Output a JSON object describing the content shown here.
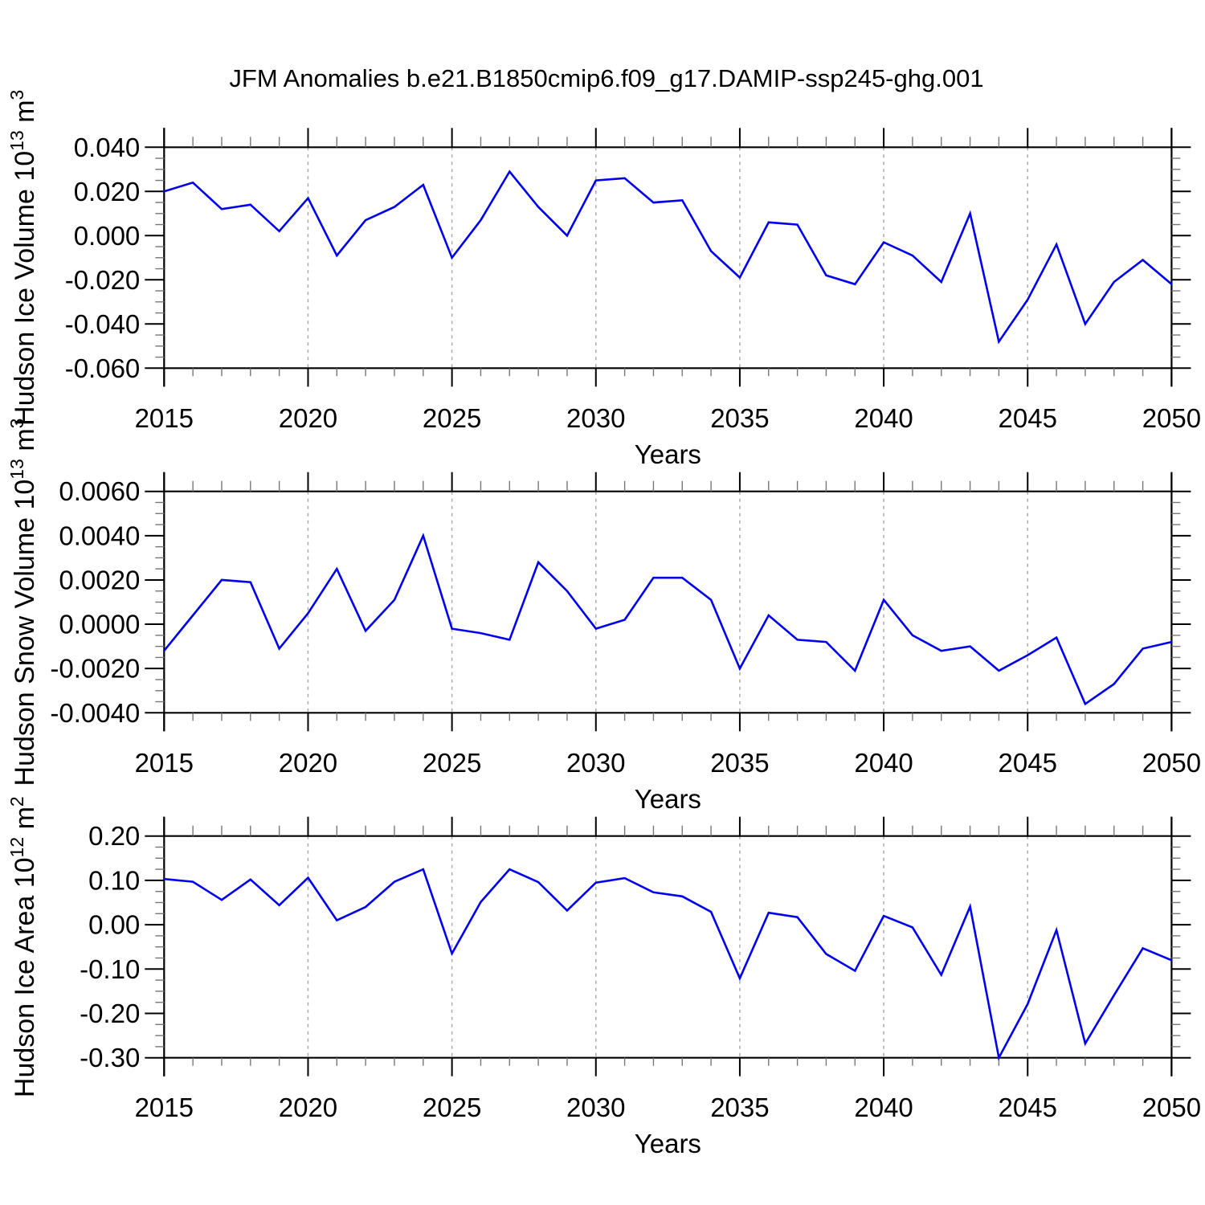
{
  "title": "JFM Anomalies b.e21.B1850cmip6.f09_g17.DAMIP-ssp245-ghg.001",
  "colors": {
    "line": "#0000ee",
    "grid": "#aaaaaa",
    "axis": "#000000",
    "minor_tick": "#777777"
  },
  "chart_data": [
    {
      "type": "line",
      "name": "hudson-ice-volume",
      "ylabel": "Hudson Ice Volume 10^13 m^3",
      "ylabel_parts": [
        [
          "t",
          "Hudson Ice Volume 10"
        ],
        [
          "sup",
          "13"
        ],
        [
          "t",
          " m"
        ],
        [
          "sup",
          "3"
        ]
      ],
      "xlabel": "Years",
      "xlim": [
        2015,
        2050
      ],
      "ylim": [
        -0.06,
        0.04
      ],
      "yminor_step": 0.005,
      "ytick_values": [
        0.04,
        0.02,
        0.0,
        -0.02,
        -0.04,
        -0.06
      ],
      "ytick_labels": [
        "0.040",
        "0.020",
        "0.000",
        "-0.020",
        "-0.040",
        "-0.060"
      ],
      "xtick_years": [
        2015,
        2020,
        2025,
        2030,
        2035,
        2040,
        2045,
        2050
      ],
      "xtick_labels": [
        "2015",
        "2020",
        "2025",
        "2030",
        "2035",
        "2040",
        "2045",
        "2050"
      ],
      "grid_years": [
        2020,
        2025,
        2030,
        2035,
        2040,
        2045
      ],
      "grid_on": true,
      "legend": "none",
      "x": [
        2015,
        2016,
        2017,
        2018,
        2019,
        2020,
        2021,
        2022,
        2023,
        2024,
        2025,
        2026,
        2027,
        2028,
        2029,
        2030,
        2031,
        2032,
        2033,
        2034,
        2035,
        2036,
        2037,
        2038,
        2039,
        2040,
        2041,
        2042,
        2043,
        2044,
        2045,
        2046,
        2047,
        2048,
        2049,
        2050
      ],
      "values": [
        0.02,
        0.024,
        0.012,
        0.014,
        0.002,
        0.017,
        -0.009,
        0.007,
        0.013,
        0.023,
        -0.01,
        0.007,
        0.029,
        0.013,
        0.0,
        0.025,
        0.026,
        0.015,
        0.016,
        -0.007,
        -0.019,
        0.006,
        0.005,
        -0.018,
        -0.022,
        -0.003,
        -0.009,
        -0.021,
        0.01,
        -0.048,
        -0.029,
        -0.004,
        -0.04,
        -0.021,
        -0.011,
        -0.022
      ]
    },
    {
      "type": "line",
      "name": "hudson-snow-volume",
      "ylabel": "Hudson Snow Volume 10^13 m^3",
      "ylabel_parts": [
        [
          "t",
          "Hudson Snow Volume 10"
        ],
        [
          "sup",
          "13"
        ],
        [
          "t",
          " m"
        ],
        [
          "sup",
          "3"
        ]
      ],
      "xlabel": "Years",
      "xlim": [
        2015,
        2050
      ],
      "ylim": [
        -0.004,
        0.006
      ],
      "yminor_step": 0.0005,
      "ytick_values": [
        0.006,
        0.004,
        0.002,
        0.0,
        -0.002,
        -0.004
      ],
      "ytick_labels": [
        "0.0060",
        "0.0040",
        "0.0020",
        "0.0000",
        "-0.0020",
        "-0.0040"
      ],
      "xtick_years": [
        2015,
        2020,
        2025,
        2030,
        2035,
        2040,
        2045,
        2050
      ],
      "xtick_labels": [
        "2015",
        "2020",
        "2025",
        "2030",
        "2035",
        "2040",
        "2045",
        "2050"
      ],
      "grid_years": [
        2020,
        2025,
        2030,
        2035,
        2040,
        2045
      ],
      "grid_on": true,
      "legend": "none",
      "x": [
        2015,
        2016,
        2017,
        2018,
        2019,
        2020,
        2021,
        2022,
        2023,
        2024,
        2025,
        2026,
        2027,
        2028,
        2029,
        2030,
        2031,
        2032,
        2033,
        2034,
        2035,
        2036,
        2037,
        2038,
        2039,
        2040,
        2041,
        2042,
        2043,
        2044,
        2045,
        2046,
        2047,
        2048,
        2049,
        2050
      ],
      "values": [
        -0.0012,
        0.0004,
        0.002,
        0.0019,
        -0.0011,
        0.0005,
        0.0025,
        -0.0003,
        0.0011,
        0.004,
        -0.0002,
        -0.0004,
        -0.0007,
        0.0028,
        0.0015,
        -0.0002,
        0.0002,
        0.0021,
        0.0021,
        0.0011,
        -0.002,
        0.0004,
        -0.0007,
        -0.0008,
        -0.0021,
        0.0011,
        -0.0005,
        -0.0012,
        -0.001,
        -0.0021,
        -0.0014,
        -0.0006,
        -0.0036,
        -0.0027,
        -0.0011,
        -0.0008
      ]
    },
    {
      "type": "line",
      "name": "hudson-ice-area",
      "ylabel": "Hudson Ice Area 10^12 m^2",
      "ylabel_parts": [
        [
          "t",
          "Hudson Ice Area 10"
        ],
        [
          "sup",
          "12"
        ],
        [
          "t",
          " m"
        ],
        [
          "sup",
          "2"
        ]
      ],
      "xlabel": "Years",
      "xlim": [
        2015,
        2050
      ],
      "ylim": [
        -0.3,
        0.2
      ],
      "yminor_step": 0.025,
      "ytick_values": [
        0.2,
        0.1,
        0.0,
        -0.1,
        -0.2,
        -0.3
      ],
      "ytick_labels": [
        "0.20",
        "0.10",
        "0.00",
        "-0.10",
        "-0.20",
        "-0.30"
      ],
      "xtick_years": [
        2015,
        2020,
        2025,
        2030,
        2035,
        2040,
        2045,
        2050
      ],
      "xtick_labels": [
        "2015",
        "2020",
        "2025",
        "2030",
        "2035",
        "2040",
        "2045",
        "2050"
      ],
      "grid_years": [
        2020,
        2025,
        2030,
        2035,
        2040,
        2045
      ],
      "grid_on": true,
      "legend": "none",
      "x": [
        2015,
        2016,
        2017,
        2018,
        2019,
        2020,
        2021,
        2022,
        2023,
        2024,
        2025,
        2026,
        2027,
        2028,
        2029,
        2030,
        2031,
        2032,
        2033,
        2034,
        2035,
        2036,
        2037,
        2038,
        2039,
        2040,
        2041,
        2042,
        2043,
        2044,
        2045,
        2046,
        2047,
        2048,
        2049,
        2050
      ],
      "values": [
        0.103,
        0.097,
        0.056,
        0.102,
        0.044,
        0.106,
        0.01,
        0.04,
        0.097,
        0.125,
        -0.065,
        0.051,
        0.125,
        0.096,
        0.032,
        0.095,
        0.105,
        0.073,
        0.064,
        0.029,
        -0.121,
        0.027,
        0.017,
        -0.066,
        -0.104,
        0.02,
        -0.006,
        -0.113,
        0.041,
        -0.3,
        -0.179,
        -0.012,
        -0.268,
        -0.159,
        -0.053,
        -0.08
      ]
    }
  ]
}
